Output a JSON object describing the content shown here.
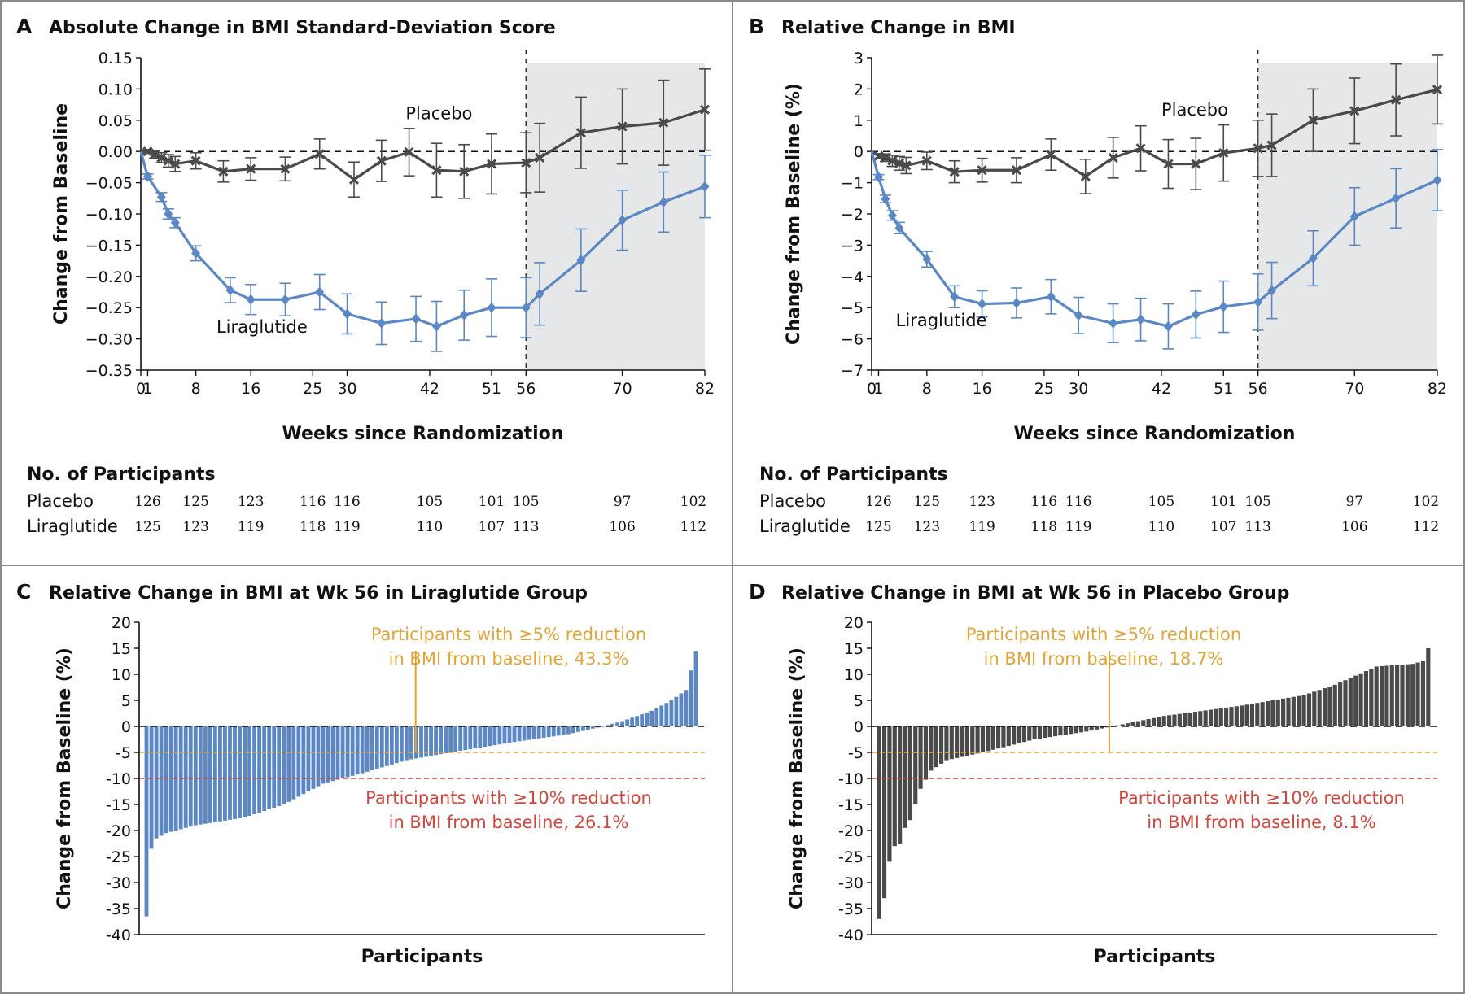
{
  "colors": {
    "placebo": "#4a4a4a",
    "liraglutide": "#5b87c5",
    "orange": "#e2a336",
    "red": "#d0483d",
    "shade": "#e6e7e9",
    "border": "#8a8a8a"
  },
  "chart_data": [
    {
      "panel": "A",
      "type": "line",
      "title": "Absolute Change in BMI Standard-Deviation Score",
      "xlabel": "Weeks since Randomization",
      "ylabel": "Change from Baseline",
      "xlim": [
        0,
        82
      ],
      "ylim": [
        -0.35,
        0.15
      ],
      "xticks": [
        "0",
        "1",
        "8",
        "16",
        "25",
        "30",
        "42",
        "51",
        "56",
        "70",
        "82"
      ],
      "yticks": [
        "0.15",
        "0.10",
        "0.05",
        "0.00",
        "−0.05",
        "−0.10",
        "−0.15",
        "−0.20",
        "−0.25",
        "−0.30",
        "−0.35"
      ],
      "shaded_from_week": 56,
      "series": [
        {
          "name": "Placebo",
          "marker": "x",
          "x": [
            0,
            1,
            2,
            3,
            4,
            5,
            8,
            12,
            16,
            21,
            26,
            31,
            35,
            39,
            43,
            47,
            51,
            56,
            58,
            64,
            70,
            76,
            82
          ],
          "y": [
            0,
            0,
            -0.005,
            -0.01,
            -0.015,
            -0.02,
            -0.015,
            -0.032,
            -0.028,
            -0.028,
            -0.004,
            -0.045,
            -0.015,
            -0.001,
            -0.03,
            -0.032,
            -0.02,
            -0.018,
            -0.01,
            0.03,
            0.04,
            0.046,
            0.067
          ],
          "err": [
            0,
            0.003,
            0.006,
            0.008,
            0.01,
            0.012,
            0.013,
            0.017,
            0.018,
            0.019,
            0.024,
            0.028,
            0.033,
            0.038,
            0.043,
            0.043,
            0.048,
            0.048,
            0.055,
            0.057,
            0.06,
            0.068,
            0.065
          ]
        },
        {
          "name": "Liraglutide",
          "marker": "diamond",
          "x": [
            0,
            1,
            3,
            4,
            5,
            8,
            13,
            16,
            21,
            26,
            30,
            35,
            40,
            43,
            47,
            51,
            56,
            58,
            64,
            70,
            76,
            82
          ],
          "y": [
            0,
            -0.04,
            -0.073,
            -0.1,
            -0.114,
            -0.163,
            -0.222,
            -0.237,
            -0.237,
            -0.225,
            -0.26,
            -0.275,
            -0.268,
            -0.28,
            -0.262,
            -0.25,
            -0.25,
            -0.228,
            -0.174,
            -0.11,
            -0.081,
            -0.056
          ],
          "err": [
            0,
            0.004,
            0.007,
            0.008,
            0.008,
            0.012,
            0.02,
            0.024,
            0.026,
            0.028,
            0.032,
            0.034,
            0.036,
            0.04,
            0.04,
            0.046,
            0.048,
            0.05,
            0.05,
            0.048,
            0.048,
            0.05
          ]
        }
      ],
      "series_labels": [
        {
          "text": "Placebo",
          "x": 38.5,
          "y": 0.052
        },
        {
          "text": "Liraglutide",
          "x": 11,
          "y": -0.29
        }
      ],
      "participants": {
        "heading": "No. of Participants",
        "rows": [
          {
            "label": "Placebo",
            "values": [
              {
                "week": 1,
                "n": "126"
              },
              {
                "week": 8,
                "n": "125"
              },
              {
                "week": 16,
                "n": "123"
              },
              {
                "week": 25,
                "n": "116"
              },
              {
                "week": 30,
                "n": "116"
              },
              {
                "week": 42,
                "n": "105"
              },
              {
                "week": 51,
                "n": "101"
              },
              {
                "week": 56,
                "n": "105"
              },
              {
                "week": 70,
                "n": "97"
              },
              {
                "week": 82,
                "n": "102"
              }
            ]
          },
          {
            "label": "Liraglutide",
            "values": [
              {
                "week": 1,
                "n": "125"
              },
              {
                "week": 8,
                "n": "123"
              },
              {
                "week": 16,
                "n": "119"
              },
              {
                "week": 25,
                "n": "118"
              },
              {
                "week": 30,
                "n": "119"
              },
              {
                "week": 42,
                "n": "110"
              },
              {
                "week": 51,
                "n": "107"
              },
              {
                "week": 56,
                "n": "113"
              },
              {
                "week": 70,
                "n": "106"
              },
              {
                "week": 82,
                "n": "112"
              }
            ]
          }
        ]
      }
    },
    {
      "panel": "B",
      "type": "line",
      "title": "Relative Change in BMI",
      "xlabel": "Weeks since Randomization",
      "ylabel": "Change from Baseline (%)",
      "xlim": [
        0,
        82
      ],
      "ylim": [
        -7,
        3
      ],
      "xticks": [
        "0",
        "1",
        "8",
        "16",
        "25",
        "30",
        "42",
        "51",
        "56",
        "70",
        "82"
      ],
      "yticks": [
        "3",
        "2",
        "1",
        "0",
        "−1",
        "−2",
        "−3",
        "−4",
        "−5",
        "−6",
        "−7"
      ],
      "shaded_from_week": 56,
      "series": [
        {
          "name": "Placebo",
          "marker": "x",
          "x": [
            0,
            1,
            2,
            3,
            4,
            5,
            8,
            12,
            16,
            21,
            26,
            31,
            35,
            39,
            43,
            47,
            51,
            56,
            58,
            64,
            70,
            76,
            82
          ],
          "y": [
            0,
            -0.15,
            -0.2,
            -0.3,
            -0.38,
            -0.45,
            -0.3,
            -0.65,
            -0.6,
            -0.6,
            -0.1,
            -0.8,
            -0.2,
            0.1,
            -0.4,
            -0.4,
            -0.05,
            0.1,
            0.2,
            1.0,
            1.3,
            1.65,
            1.98
          ],
          "err": [
            0,
            0.08,
            0.12,
            0.18,
            0.22,
            0.26,
            0.28,
            0.35,
            0.38,
            0.4,
            0.5,
            0.55,
            0.65,
            0.72,
            0.78,
            0.82,
            0.9,
            0.9,
            1.0,
            1.0,
            1.05,
            1.15,
            1.1
          ]
        },
        {
          "name": "Liraglutide",
          "marker": "diamond",
          "x": [
            0,
            1,
            2,
            3,
            4,
            8,
            12,
            16,
            21,
            26,
            30,
            35,
            39,
            43,
            47,
            51,
            56,
            58,
            64,
            70,
            76,
            82
          ],
          "y": [
            0,
            -0.82,
            -1.52,
            -2.05,
            -2.45,
            -3.45,
            -4.65,
            -4.88,
            -4.85,
            -4.65,
            -5.25,
            -5.5,
            -5.38,
            -5.6,
            -5.22,
            -4.97,
            -4.82,
            -4.45,
            -3.42,
            -2.08,
            -1.5,
            -0.92
          ],
          "err": [
            0,
            0.08,
            0.12,
            0.15,
            0.18,
            0.25,
            0.35,
            0.42,
            0.48,
            0.55,
            0.58,
            0.62,
            0.68,
            0.72,
            0.75,
            0.82,
            0.9,
            0.9,
            0.88,
            0.92,
            0.95,
            0.98
          ]
        }
      ],
      "series_labels": [
        {
          "text": "Placebo",
          "x": 42,
          "y": 1.15
        },
        {
          "text": "Liraglutide",
          "x": 3.5,
          "y": -5.6
        }
      ],
      "participants": {
        "heading": "No. of Participants",
        "rows": [
          {
            "label": "Placebo",
            "values": [
              {
                "week": 1,
                "n": "126"
              },
              {
                "week": 8,
                "n": "125"
              },
              {
                "week": 16,
                "n": "123"
              },
              {
                "week": 25,
                "n": "116"
              },
              {
                "week": 30,
                "n": "116"
              },
              {
                "week": 42,
                "n": "105"
              },
              {
                "week": 51,
                "n": "101"
              },
              {
                "week": 56,
                "n": "105"
              },
              {
                "week": 70,
                "n": "97"
              },
              {
                "week": 82,
                "n": "102"
              }
            ]
          },
          {
            "label": "Liraglutide",
            "values": [
              {
                "week": 1,
                "n": "125"
              },
              {
                "week": 8,
                "n": "123"
              },
              {
                "week": 16,
                "n": "119"
              },
              {
                "week": 25,
                "n": "118"
              },
              {
                "week": 30,
                "n": "119"
              },
              {
                "week": 42,
                "n": "110"
              },
              {
                "week": 51,
                "n": "107"
              },
              {
                "week": 56,
                "n": "113"
              },
              {
                "week": 70,
                "n": "106"
              },
              {
                "week": 82,
                "n": "112"
              }
            ]
          }
        ]
      }
    },
    {
      "panel": "C",
      "type": "bar",
      "title": "Relative Change in BMI at Wk 56 in Liraglutide Group",
      "xlabel": "Participants",
      "ylabel": "Change from Baseline (%)",
      "ylim": [
        -40,
        20
      ],
      "yticks": [
        "20",
        "15",
        "10",
        "5",
        "0",
        "-5",
        "-10",
        "-15",
        "-20",
        "-25",
        "-30",
        "-35",
        "-40"
      ],
      "color_key": "liraglutide",
      "thresholds": [
        {
          "value": -5,
          "color_key": "orange"
        },
        {
          "value": -10,
          "color_key": "red"
        }
      ],
      "annotations": [
        {
          "lines": [
            "Participants with ≥5% reduction",
            "in BMI from baseline, 43.3%"
          ],
          "color_key": "orange"
        },
        {
          "lines": [
            "Participants with ≥10% reduction",
            "in BMI from baseline, 26.1%"
          ],
          "color_key": "red"
        }
      ],
      "sorted_values": {
        "count": 113,
        "points": [
          [
            0,
            -36.5
          ],
          [
            1,
            -23.5
          ],
          [
            2,
            -21.5
          ],
          [
            4,
            -20.5
          ],
          [
            10,
            -19
          ],
          [
            20,
            -17.5
          ],
          [
            28,
            -15
          ],
          [
            36,
            -11
          ],
          [
            44,
            -9
          ],
          [
            53,
            -6.5
          ],
          [
            62,
            -5
          ],
          [
            75,
            -3
          ],
          [
            86,
            -1.5
          ],
          [
            93,
            0
          ],
          [
            97,
            1
          ],
          [
            103,
            3
          ],
          [
            107,
            5
          ],
          [
            110,
            7
          ],
          [
            112,
            14.5
          ]
        ]
      }
    },
    {
      "panel": "D",
      "type": "bar",
      "title": "Relative Change in BMI at Wk 56 in Placebo Group",
      "xlabel": "Participants",
      "ylabel": "Change from Baseline (%)",
      "ylim": [
        -40,
        20
      ],
      "yticks": [
        "20",
        "15",
        "10",
        "5",
        "0",
        "-5",
        "-10",
        "-15",
        "-20",
        "-25",
        "-30",
        "-35",
        "-40"
      ],
      "color_key": "placebo",
      "thresholds": [
        {
          "value": -5,
          "color_key": "orange"
        },
        {
          "value": -10,
          "color_key": "red"
        }
      ],
      "annotations": [
        {
          "lines": [
            "Participants with ≥5% reduction",
            "in BMI from baseline, 18.7%"
          ],
          "color_key": "orange"
        },
        {
          "lines": [
            "Participants with ≥10% reduction",
            "in BMI from baseline, 8.1%"
          ],
          "color_key": "red"
        }
      ],
      "sorted_values": {
        "count": 107,
        "points": [
          [
            0,
            -37
          ],
          [
            1,
            -33
          ],
          [
            2,
            -26
          ],
          [
            3,
            -23
          ],
          [
            4,
            -22.5
          ],
          [
            5,
            -19.5
          ],
          [
            6,
            -18
          ],
          [
            8,
            -12
          ],
          [
            10,
            -8.5
          ],
          [
            13,
            -6.5
          ],
          [
            20,
            -5
          ],
          [
            30,
            -2.5
          ],
          [
            40,
            -1
          ],
          [
            45,
            0
          ],
          [
            55,
            2
          ],
          [
            70,
            4
          ],
          [
            82,
            6
          ],
          [
            88,
            8
          ],
          [
            96,
            11.5
          ],
          [
            103,
            12
          ],
          [
            105,
            12.5
          ],
          [
            106,
            15
          ]
        ]
      }
    }
  ]
}
